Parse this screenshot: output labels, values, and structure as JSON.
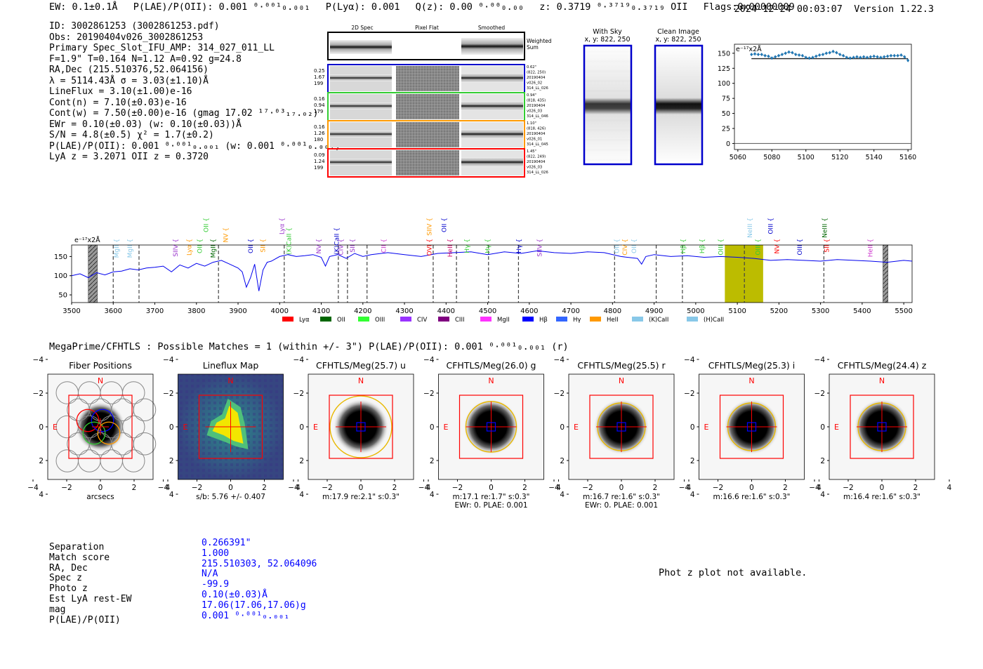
{
  "header": {
    "ew": "EW: 0.1±0.1Å",
    "plae": "P(LAE)/P(OII): 0.001 ⁰·⁰⁰¹₀.₀₀₁",
    "plya": "P(Lyα): 0.001",
    "qz": "Q(z): 0.00 ⁰·⁰⁰₀.₀₀",
    "z": "z: 0.3719 ⁰·³⁷¹⁹₀.₃₇₁₉ OII",
    "flags": "Flags:0x00000009",
    "datetime": "2024-12-24 00:03:07",
    "version": "Version 1.22.3"
  },
  "info": [
    "ID: 3002861253 (3002861253.pdf)",
    "Obs: 20190404v026_3002861253",
    "Primary Spec_Slot_IFU_AMP: 314_027_011_LL",
    "F=1.9\"  T=0.164  N=1.12  A=0.92  g=24.8",
    "RA,Dec (215.510376,52.064156)",
    "λ = 5114.43Å  σ = 3.03(±1.10)Å",
    "LineFlux = 3.10(±1.00)e-16",
    "Cont(n) = 7.10(±0.03)e-16",
    "Cont(w) = 7.50(±0.00)e-16 (gmag 17.02 ¹⁷·⁰³₁₇.₀₂)",
    "EWr = 0.10(±0.03) (w: 0.10(±0.03))Å",
    "S/N = 4.8(±0.5)  χ² = 1.7(±0.2)",
    "P(LAE)/P(OII): 0.001 ⁰·⁰⁰¹₀.₀₀₁ (w: 0.001 ⁰·⁰⁰¹₀.₀₀₁)",
    "LyA z = 3.2071  OII z = 0.3720"
  ],
  "cutouts": {
    "headers": [
      "2D Spec",
      "Pixel Flat",
      "Smoothed"
    ],
    "weighted_label": [
      "Weighted",
      "Sum"
    ],
    "rows": [
      {
        "color": "#0000cc",
        "left": [
          "0.25",
          "1.67",
          "199"
        ],
        "right": [
          "0.62\"",
          "(822, 250)",
          "20190404",
          "v026_02",
          "314_LL_026"
        ]
      },
      {
        "color": "#33cc33",
        "left": [
          "0.16",
          "0.94",
          "179"
        ],
        "right": [
          "0.94\"",
          "(818, 435)",
          "20190404",
          "v026_03",
          "314_LL_046"
        ]
      },
      {
        "color": "#ff9900",
        "left": [
          "0.16",
          "1.26",
          "180"
        ],
        "right": [
          "1.10\"",
          "(818, 426)",
          "20190404",
          "v026_01",
          "314_LL_045"
        ]
      },
      {
        "color": "#ff0000",
        "left": [
          "0.09",
          "1.24",
          "199"
        ],
        "right": [
          "1.45\"",
          "(822, 249)",
          "20190404",
          "v026_03",
          "314_LL_026"
        ]
      }
    ]
  },
  "sky": {
    "with_sky": [
      "With Sky",
      "x, y: 822, 250"
    ],
    "clean": [
      "Clean Image",
      "x, y: 822, 250"
    ]
  },
  "chart_data": [
    {
      "type": "scatter",
      "title": "",
      "unit_label": "e⁻¹⁷x2Å",
      "xlim": [
        5058,
        5162
      ],
      "ylim": [
        -10,
        165
      ],
      "xticks": [
        5060,
        5080,
        5100,
        5120,
        5140,
        5160
      ],
      "yticks": [
        0,
        25,
        50,
        75,
        100,
        125,
        150
      ],
      "x": [
        5068,
        5070,
        5072,
        5074,
        5076,
        5078,
        5080,
        5082,
        5084,
        5086,
        5088,
        5090,
        5092,
        5094,
        5096,
        5098,
        5100,
        5102,
        5104,
        5106,
        5108,
        5110,
        5112,
        5114,
        5116,
        5118,
        5120,
        5122,
        5124,
        5126,
        5128,
        5130,
        5132,
        5134,
        5136,
        5138,
        5140,
        5142,
        5144,
        5146,
        5148,
        5150,
        5152,
        5154,
        5156,
        5158,
        5160
      ],
      "y": [
        148,
        149,
        148,
        148,
        146,
        145,
        142,
        144,
        146,
        148,
        150,
        152,
        151,
        148,
        147,
        146,
        143,
        142,
        143,
        145,
        147,
        148,
        150,
        151,
        153,
        151,
        148,
        146,
        143,
        142,
        143,
        144,
        143,
        144,
        143,
        144,
        145,
        144,
        143,
        144,
        145,
        146,
        146,
        146,
        147,
        144,
        138
      ],
      "fit_line": 141
    },
    {
      "type": "line",
      "title": "",
      "unit_label": "e⁻¹⁷x2Å",
      "xlim": [
        3500,
        5520
      ],
      "ylim": [
        30,
        180
      ],
      "xticks": [
        3500,
        3600,
        3700,
        3800,
        3900,
        4000,
        4100,
        4200,
        4300,
        4400,
        4500,
        4600,
        4700,
        4800,
        4900,
        5000,
        5100,
        5200,
        5300,
        5400,
        5500
      ],
      "yticks": [
        50,
        100,
        150
      ],
      "spectrum_x": [
        3500,
        3520,
        3540,
        3560,
        3580,
        3600,
        3620,
        3640,
        3660,
        3680,
        3700,
        3720,
        3740,
        3760,
        3780,
        3800,
        3820,
        3840,
        3860,
        3880,
        3900,
        3910,
        3920,
        3930,
        3940,
        3950,
        3960,
        3970,
        3980,
        4000,
        4020,
        4040,
        4060,
        4080,
        4100,
        4110,
        4120,
        4140,
        4160,
        4180,
        4200,
        4220,
        4260,
        4300,
        4340,
        4380,
        4420,
        4460,
        4500,
        4540,
        4580,
        4620,
        4660,
        4700,
        4740,
        4780,
        4820,
        4860,
        4870,
        4880,
        4900,
        4940,
        4980,
        5020,
        5060,
        5100,
        5140,
        5180,
        5220,
        5260,
        5300,
        5340,
        5380,
        5420,
        5460,
        5500,
        5520
      ],
      "spectrum_y": [
        100,
        105,
        95,
        108,
        102,
        110,
        112,
        118,
        115,
        120,
        122,
        125,
        110,
        128,
        120,
        132,
        125,
        135,
        140,
        130,
        120,
        110,
        70,
        95,
        130,
        60,
        115,
        135,
        138,
        150,
        155,
        150,
        152,
        155,
        148,
        125,
        150,
        155,
        145,
        158,
        150,
        155,
        160,
        155,
        150,
        158,
        160,
        162,
        155,
        162,
        158,
        165,
        160,
        158,
        162,
        160,
        150,
        145,
        130,
        150,
        155,
        150,
        152,
        148,
        150,
        148,
        145,
        140,
        142,
        140,
        138,
        142,
        140,
        138,
        135,
        140,
        138
      ],
      "highlight_x": [
        5070,
        5162
      ],
      "masked_x": [
        [
          3540,
          3562
        ],
        [
          5450,
          5462
        ]
      ],
      "dashed_lines_x": [
        3600,
        3662,
        3853,
        4011,
        4141,
        4163,
        4210,
        4369,
        4425,
        4502,
        4574,
        4805,
        4905,
        4968,
        5117,
        5308
      ],
      "emission_lines": [
        {
          "x": 3608,
          "y_row": 2,
          "label": "MgII",
          "color": "#88c8e8"
        },
        {
          "x": 3640,
          "y_row": 2,
          "label": "MgII",
          "color": "#88c8e8"
        },
        {
          "x": 3750,
          "y_row": 2,
          "label": "SIIV",
          "color": "#9933cc"
        },
        {
          "x": 3783,
          "y_row": 2,
          "label": "Lyα",
          "color": "#ff9900"
        },
        {
          "x": 3808,
          "y_row": 2,
          "label": "OII",
          "color": "#33cc33"
        },
        {
          "x": 3840,
          "y_row": 2,
          "label": "MgII",
          "color": "#006600"
        },
        {
          "x": 3823,
          "y_row": 0,
          "label": "OII",
          "color": "#33cc33"
        },
        {
          "x": 3870,
          "y_row": 1,
          "label": "NV",
          "color": "#ff9900"
        },
        {
          "x": 3930,
          "y_row": 2,
          "label": "OII",
          "color": "#0000cc"
        },
        {
          "x": 3960,
          "y_row": 2,
          "label": "SII",
          "color": "#ff9900"
        },
        {
          "x": 4005,
          "y_row": 0,
          "label": "Lyα",
          "color": "#9933cc"
        },
        {
          "x": 4022,
          "y_row": 1,
          "label": "(K)CaII",
          "color": "#33cc33"
        },
        {
          "x": 4094,
          "y_row": 2,
          "label": "NV",
          "color": "#9933cc"
        },
        {
          "x": 4137,
          "y_row": 1,
          "label": "(K)CaII",
          "color": "#0000cc"
        },
        {
          "x": 4147,
          "y_row": 2,
          "label": "CIV",
          "color": "#9933cc"
        },
        {
          "x": 4175,
          "y_row": 2,
          "label": "SII",
          "color": "#9933cc"
        },
        {
          "x": 4250,
          "y_row": 2,
          "label": "CII",
          "color": "#cc33cc"
        },
        {
          "x": 4360,
          "y_row": 0,
          "label": "SIIV",
          "color": "#ff9900"
        },
        {
          "x": 4360,
          "y_row": 2,
          "label": "OVI",
          "color": "#ff0000"
        },
        {
          "x": 4395,
          "y_row": 0,
          "label": "OII",
          "color": "#0000cc"
        },
        {
          "x": 4410,
          "y_row": 2,
          "label": "HeII",
          "color": "#cc0066"
        },
        {
          "x": 4450,
          "y_row": 2,
          "label": "Hγ",
          "color": "#33cc33"
        },
        {
          "x": 4500,
          "y_row": 2,
          "label": "Hγ",
          "color": "#33cc33"
        },
        {
          "x": 4575,
          "y_row": 2,
          "label": "Hγ",
          "color": "#0000cc"
        },
        {
          "x": 4625,
          "y_row": 2,
          "label": "SIIV",
          "color": "#9933cc"
        },
        {
          "x": 4810,
          "y_row": 2,
          "label": "OII",
          "color": "#88c8e8"
        },
        {
          "x": 4830,
          "y_row": 2,
          "label": "CIV",
          "color": "#ff9900"
        },
        {
          "x": 4852,
          "y_row": 2,
          "label": "OII",
          "color": "#88c8e8"
        },
        {
          "x": 4970,
          "y_row": 2,
          "label": "Hβ",
          "color": "#33cc33"
        },
        {
          "x": 5015,
          "y_row": 2,
          "label": "Hβ",
          "color": "#33cc33"
        },
        {
          "x": 5060,
          "y_row": 2,
          "label": "OIII",
          "color": "#33cc33"
        },
        {
          "x": 5150,
          "y_row": 2,
          "label": "OIII",
          "color": "#33cc33"
        },
        {
          "x": 5130,
          "y_row": 0,
          "label": "NeIII",
          "color": "#88c8e8"
        },
        {
          "x": 5180,
          "y_row": 0,
          "label": "OIII",
          "color": "#0000cc"
        },
        {
          "x": 5195,
          "y_row": 2,
          "label": "NV",
          "color": "#ff0000"
        },
        {
          "x": 5250,
          "y_row": 2,
          "label": "OIII",
          "color": "#0000cc"
        },
        {
          "x": 5310,
          "y_row": 0,
          "label": "NeIII",
          "color": "#006600"
        },
        {
          "x": 5315,
          "y_row": 2,
          "label": "SII",
          "color": "#ff0000"
        },
        {
          "x": 5420,
          "y_row": 2,
          "label": "HeII",
          "color": "#cc33cc"
        }
      ],
      "legend": [
        {
          "label": "Lyα",
          "color": "#ff0000"
        },
        {
          "label": "OII",
          "color": "#006600"
        },
        {
          "label": "OIII",
          "color": "#33ff33"
        },
        {
          "label": "CIV",
          "color": "#9933ff"
        },
        {
          "label": "CIII",
          "color": "#800080"
        },
        {
          "label": "MgII",
          "color": "#ff33ff"
        },
        {
          "label": "Hβ",
          "color": "#0000ff"
        },
        {
          "label": "Hγ",
          "color": "#3366ff"
        },
        {
          "label": "HeII",
          "color": "#ff9900"
        },
        {
          "label": "(K)CaII",
          "color": "#88c8e8"
        },
        {
          "label": "(H)CaII",
          "color": "#88c8e8"
        }
      ]
    }
  ],
  "megaprime": "MegaPrime/CFHTLS : Possible Matches = 1 (within +/- 3\")  P(LAE)/P(OII): 0.001 ⁰·⁰⁰¹₀.₀₀₁ (r)",
  "panels": [
    {
      "title": "Fiber Positions",
      "type": "fiber",
      "caption1": "arcsecs",
      "caption2": ""
    },
    {
      "title": "Lineflux Map",
      "type": "lineflux",
      "caption1": "s/b: 5.76 +/- 0.407",
      "caption2": ""
    },
    {
      "title": "CFHTLS/Meg(25.7) u",
      "type": "image",
      "caption1": "m:17.9  re:2.1\"  s:0.3\"",
      "caption2": "",
      "ring": 44
    },
    {
      "title": "CFHTLS/Meg(26.0) g",
      "type": "image",
      "caption1": "m:17.1  re:1.7\"  s:0.3\"",
      "caption2": "EWr: 0, PLAE: 0.001",
      "ring": 36
    },
    {
      "title": "CFHTLS/Meg(25.5) r",
      "type": "image",
      "caption1": "m:16.7  re:1.6\"  s:0.3\"",
      "caption2": "EWr: 0, PLAE: 0.001",
      "ring": 34
    },
    {
      "title": "CFHTLS/Meg(25.3) i",
      "type": "image",
      "caption1": "m:16.6  re:1.6\"  s:0.3\"",
      "caption2": "",
      "ring": 34
    },
    {
      "title": "CFHTLS/Meg(24.4) z",
      "type": "image",
      "caption1": "m:16.4  re:1.6\"  s:0.3\"",
      "caption2": "",
      "ring": 34
    }
  ],
  "panel_axis": {
    "ticks": [
      "4",
      "2",
      "0",
      "−2",
      "−4"
    ],
    "xticks": [
      "−4",
      "−2",
      "0",
      "2",
      "4"
    ],
    "north": "N",
    "east": "E"
  },
  "match": {
    "labels": [
      "Separation",
      "Match score",
      "RA, Dec",
      "Spec z",
      "Photo z",
      "Est LyA rest-EW",
      "mag",
      "P(LAE)/P(OII)"
    ],
    "values": [
      "0.266391\"",
      "1.000",
      "215.510303, 52.064096",
      "N/A",
      "-99.9",
      "0.10(±0.03)Å",
      "17.06(17.06,17.06)g",
      "0.001 ⁰·⁰⁰¹₀.₀₀₁"
    ]
  },
  "phot_z": "Phot z plot not available."
}
